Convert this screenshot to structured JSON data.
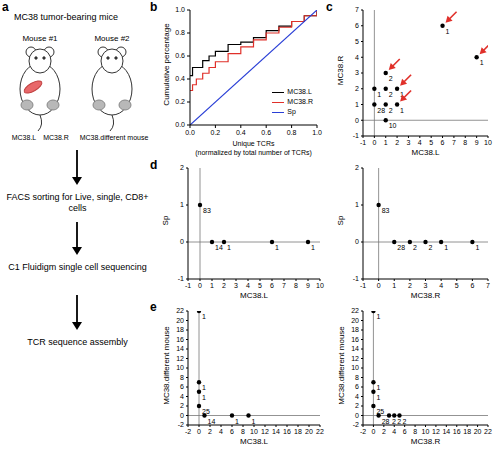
{
  "panel_labels": [
    "a",
    "b",
    "c",
    "d",
    "e"
  ],
  "diagram": {
    "title": "MC38 tumor-bearing mice",
    "mice": [
      "Mouse #1",
      "Mouse #2"
    ],
    "samples": [
      "MC38.L",
      "MC38.R",
      "MC38.different mouse"
    ],
    "steps": [
      "FACS sorting for Live, single, CD8+ cells",
      "C1 Fluidigm single cell sequencing",
      "TCR sequence assembly"
    ]
  },
  "chart_data": [
    {
      "type": "line",
      "xlabel": [
        "Unique TCRs",
        "(normalized by total number of TCRs)"
      ],
      "ylabel": "Cumulative percentage",
      "xlim": [
        0,
        1
      ],
      "ylim": [
        0,
        1
      ],
      "xticks": [
        {
          "value": 0,
          "label": "0.0"
        },
        {
          "value": 0.2,
          "label": "0.2"
        },
        {
          "value": 0.4,
          "label": "0.4"
        },
        {
          "value": 0.6,
          "label": "0.6"
        },
        {
          "value": 0.8,
          "label": "0.8"
        },
        {
          "value": 1,
          "label": "1.0"
        }
      ],
      "yticks": [
        {
          "value": 0,
          "label": "0.0"
        },
        {
          "value": 0.2,
          "label": "0.2"
        },
        {
          "value": 0.4,
          "label": "0.4"
        },
        {
          "value": 0.6,
          "label": "0.6"
        },
        {
          "value": 0.8,
          "label": "0.8"
        },
        {
          "value": 1,
          "label": "1.0"
        }
      ],
      "legend": "lower right",
      "series": [
        {
          "name": "MC38.L",
          "color": "#000000",
          "line_style": "step",
          "x": [
            0,
            0.02,
            0.05,
            0.1,
            0.15,
            0.2,
            0.3,
            0.4,
            0.5,
            0.6,
            0.7,
            0.8,
            0.9,
            1
          ],
          "values": [
            0.43,
            0.5,
            0.5,
            0.56,
            0.6,
            0.64,
            0.7,
            0.72,
            0.76,
            0.82,
            0.86,
            0.9,
            0.95,
            1
          ]
        },
        {
          "name": "MC38.R",
          "color": "#e0302a",
          "line_style": "step",
          "x": [
            0,
            0.02,
            0.05,
            0.1,
            0.15,
            0.2,
            0.3,
            0.4,
            0.5,
            0.6,
            0.7,
            0.8,
            0.9,
            1
          ],
          "values": [
            0.3,
            0.35,
            0.4,
            0.45,
            0.5,
            0.55,
            0.62,
            0.68,
            0.74,
            0.8,
            0.85,
            0.9,
            0.95,
            1
          ]
        },
        {
          "name": "Sp",
          "color": "#2a3fd6",
          "line_style": "solid",
          "x": [
            0,
            1
          ],
          "values": [
            0,
            1
          ]
        }
      ]
    },
    {
      "type": "scatter",
      "xlabel": "MC38.L",
      "ylabel": "MC38.R",
      "xlim": [
        -1,
        10
      ],
      "ylim": [
        -1,
        7
      ],
      "xticks": [
        -1,
        0,
        1,
        2,
        3,
        4,
        5,
        6,
        7,
        8,
        9,
        10
      ],
      "yticks": [
        -1,
        0,
        1,
        2,
        3,
        4,
        5,
        6,
        7
      ],
      "color": "#000000",
      "x": [
        0,
        0,
        1,
        1,
        1,
        1,
        2,
        2,
        6,
        9
      ],
      "y": [
        1,
        2,
        0,
        1,
        2,
        3,
        1,
        2,
        6,
        4
      ],
      "counts": [
        28,
        1,
        10,
        2,
        2,
        2,
        1,
        1,
        1,
        1
      ],
      "arrows": {
        "color": "#e0302a",
        "x": [
          1,
          2,
          2,
          6,
          9
        ],
        "y": [
          3,
          2,
          1,
          6,
          4
        ]
      }
    },
    {
      "type": "scatter",
      "xlabel": "MC38.L",
      "ylabel": "Sp",
      "xlim": [
        -1,
        10
      ],
      "ylim": [
        -1,
        2
      ],
      "xticks": [
        -1,
        0,
        1,
        2,
        3,
        4,
        5,
        6,
        7,
        8,
        9,
        10
      ],
      "yticks": [
        -1,
        0,
        1,
        2
      ],
      "color": "#000000",
      "x": [
        0,
        1,
        2,
        6,
        9
      ],
      "y": [
        1,
        0,
        0,
        0,
        0
      ],
      "counts": [
        83,
        14,
        1,
        1,
        1
      ]
    },
    {
      "type": "scatter",
      "xlabel": "MC38.R",
      "ylabel": "Sp",
      "xlim": [
        -1,
        7
      ],
      "ylim": [
        -1,
        2
      ],
      "xticks": [
        -1,
        0,
        1,
        2,
        3,
        4,
        5,
        6,
        7
      ],
      "yticks": [
        -1,
        0,
        1,
        2
      ],
      "color": "#000000",
      "x": [
        0,
        1,
        2,
        3,
        4,
        6
      ],
      "y": [
        1,
        0,
        0,
        0,
        0,
        0
      ],
      "counts": [
        83,
        28,
        2,
        2,
        1,
        1
      ]
    },
    {
      "type": "scatter",
      "xlabel": "MC38.L",
      "ylabel": "MC38.different mouse",
      "xlim": [
        -2,
        22
      ],
      "ylim": [
        -2,
        22
      ],
      "xticks": [
        -2,
        0,
        2,
        4,
        6,
        8,
        10,
        12,
        14,
        16,
        18,
        20,
        22
      ],
      "yticks": [
        -2,
        0,
        2,
        4,
        6,
        8,
        10,
        12,
        14,
        16,
        18,
        20,
        22
      ],
      "color": "#000000",
      "x": [
        0,
        0,
        0,
        0,
        1,
        6,
        9
      ],
      "y": [
        22,
        7,
        5,
        2,
        0,
        0,
        0
      ],
      "counts": [
        1,
        1,
        1,
        25,
        14,
        1,
        1
      ]
    },
    {
      "type": "scatter",
      "xlabel": "MC38.R",
      "ylabel": "MC38.different mouse",
      "xlim": [
        -2,
        22
      ],
      "ylim": [
        -2,
        22
      ],
      "xticks": [
        -2,
        0,
        2,
        4,
        6,
        8,
        10,
        12,
        14,
        16,
        18,
        20,
        22
      ],
      "yticks": [
        -2,
        0,
        2,
        4,
        6,
        8,
        10,
        12,
        14,
        16,
        18,
        20,
        22
      ],
      "color": "#000000",
      "x": [
        0,
        0,
        0,
        0,
        1,
        3,
        4,
        5
      ],
      "y": [
        22,
        7,
        5,
        2,
        0,
        0,
        0,
        0
      ],
      "counts": [
        1,
        1,
        1,
        25,
        28,
        2,
        2,
        2
      ]
    }
  ]
}
